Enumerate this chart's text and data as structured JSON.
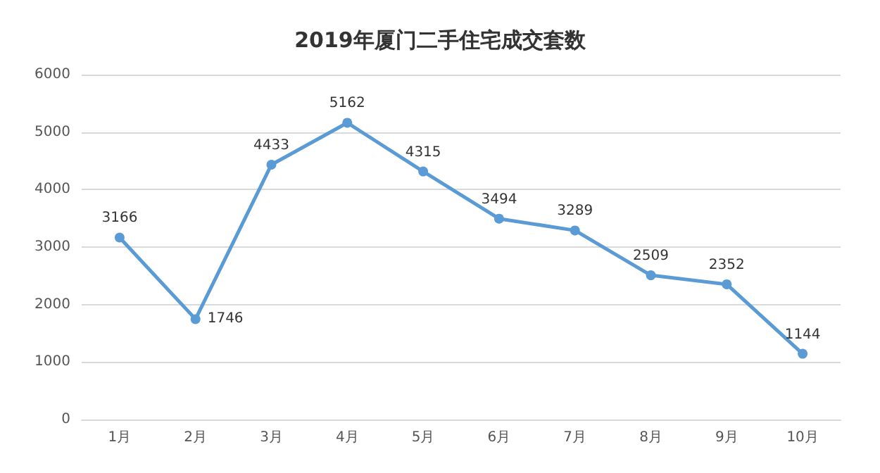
{
  "chart_data": {
    "type": "line",
    "title": "2019年厦门二手住宅成交套数",
    "categories": [
      "1月",
      "2月",
      "3月",
      "4月",
      "5月",
      "6月",
      "7月",
      "8月",
      "9月",
      "10月"
    ],
    "series": [
      {
        "color": "#5b9bd5",
        "values": [
          3166,
          1746,
          4433,
          5162,
          4315,
          3494,
          3289,
          2509,
          2352,
          1144
        ]
      }
    ],
    "ylim": [
      0,
      6000
    ],
    "yticks": [
      0,
      1000,
      2000,
      3000,
      4000,
      5000,
      6000
    ],
    "grid": "y",
    "marker": "circle",
    "line_style": "solid",
    "data_labels": true
  }
}
